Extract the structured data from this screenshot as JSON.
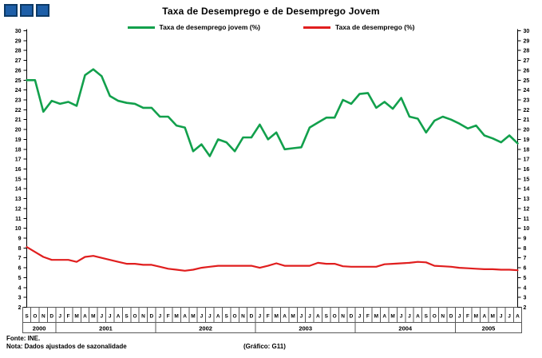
{
  "title": "Taxa de Desemprego e de Desemprego Jovem",
  "legend": [
    {
      "label": "Taxa de desemprego jovem (%)",
      "color": "#12a04c"
    },
    {
      "label": "Taxa de desemprego (%)",
      "color": "#e01e1e"
    }
  ],
  "logo": {
    "square_color": "#1e5fa8",
    "border_color": "#0d3a66",
    "square_count": 3
  },
  "footer": {
    "source": "Fonte: INE.",
    "note": "Nota: Dados ajustados de sazonalidade",
    "graph_ref": "(Gráfico: G11)"
  },
  "chart_data": {
    "type": "line",
    "title": "Taxa de Desemprego e de Desemprego Jovem",
    "xlabel": "",
    "ylabel": "",
    "ylim": [
      2,
      30
    ],
    "y_tick_step": 1,
    "grid": false,
    "legend_position": "top-center",
    "axes": "identical value axis on left and right (2 to 30, step 1)",
    "x_months": [
      "S",
      "O",
      "N",
      "D",
      "J",
      "F",
      "M",
      "A",
      "M",
      "J",
      "J",
      "A",
      "S",
      "O",
      "N",
      "D",
      "J",
      "F",
      "M",
      "A",
      "M",
      "J",
      "J",
      "A",
      "S",
      "O",
      "N",
      "D",
      "J",
      "F",
      "M",
      "A",
      "M",
      "J",
      "J",
      "A",
      "S",
      "O",
      "N",
      "D",
      "J",
      "F",
      "M",
      "A",
      "M",
      "J",
      "J",
      "A",
      "S",
      "O",
      "N",
      "D",
      "J",
      "F",
      "M",
      "A",
      "M",
      "J",
      "J",
      "A"
    ],
    "year_groups": [
      {
        "label": "2000",
        "count": 4
      },
      {
        "label": "2001",
        "count": 12
      },
      {
        "label": "2002",
        "count": 12
      },
      {
        "label": "2003",
        "count": 12
      },
      {
        "label": "2004",
        "count": 12
      },
      {
        "label": "2005",
        "count": 8
      }
    ],
    "series": [
      {
        "name": "Taxa de desemprego jovem (%)",
        "color": "#12a04c",
        "stroke_width": 2.6,
        "values": [
          25.0,
          25.0,
          21.8,
          22.9,
          22.6,
          22.8,
          22.4,
          25.5,
          26.1,
          25.4,
          23.4,
          22.9,
          22.7,
          22.6,
          22.2,
          22.2,
          21.3,
          21.3,
          20.4,
          20.2,
          17.8,
          18.5,
          17.3,
          19.0,
          18.7,
          17.8,
          19.2,
          19.2,
          20.5,
          19.0,
          19.7,
          18.0,
          18.1,
          18.2,
          20.2,
          20.7,
          21.2,
          21.2,
          23.0,
          22.6,
          23.6,
          23.7,
          22.2,
          22.8,
          22.1,
          23.2,
          21.3,
          21.1,
          19.7,
          20.9,
          21.3,
          21.0,
          20.6,
          20.1,
          20.4,
          19.4,
          19.1,
          18.7,
          19.4,
          18.6
        ]
      },
      {
        "name": "Taxa de desemprego (%)",
        "color": "#e01e1e",
        "stroke_width": 2.2,
        "values": [
          8.1,
          7.6,
          7.1,
          6.8,
          6.8,
          6.8,
          6.6,
          7.1,
          7.2,
          7.0,
          6.8,
          6.6,
          6.4,
          6.4,
          6.3,
          6.3,
          6.1,
          5.9,
          5.8,
          5.7,
          5.8,
          6.0,
          6.1,
          6.2,
          6.2,
          6.2,
          6.2,
          6.2,
          6.0,
          6.2,
          6.45,
          6.2,
          6.2,
          6.2,
          6.2,
          6.5,
          6.4,
          6.4,
          6.15,
          6.1,
          6.1,
          6.1,
          6.1,
          6.35,
          6.4,
          6.45,
          6.5,
          6.6,
          6.55,
          6.2,
          6.15,
          6.1,
          6.0,
          5.95,
          5.9,
          5.85,
          5.85,
          5.8,
          5.8,
          5.75
        ]
      }
    ]
  }
}
